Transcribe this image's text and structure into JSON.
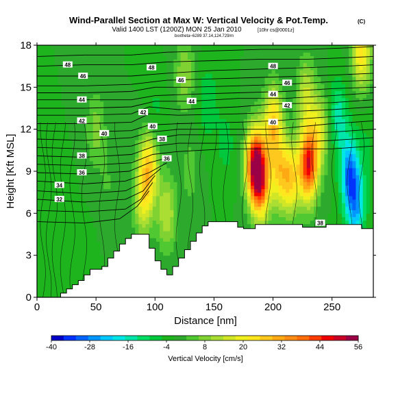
{
  "header": {
    "title": "Wind-Parallel Section at Max W: Vertical Velocity & Pot.Temp.",
    "copyright": "(C)",
    "valid_line": "Valid 1400 LST (1200Z) MON 25 Jan 2010",
    "valid_suffix": "[10hr cs@0001z]",
    "subline": "bxxtheta~6289 37.14,124.729/m"
  },
  "chart_data": {
    "type": "heatmap",
    "title": "Wind-Parallel Section at Max W: Vertical Velocity & Pot.Temp.",
    "xlabel": "Distance [nm]",
    "ylabel": "Height [Kft MSL]",
    "xlim": [
      0,
      285
    ],
    "ylim": [
      0,
      18
    ],
    "x_ticks": [
      0,
      50,
      100,
      150,
      200,
      250
    ],
    "y_ticks": [
      0,
      3,
      6,
      9,
      12,
      15,
      18
    ],
    "x_tick_labels": [
      "0",
      "50",
      "100",
      "150",
      "200",
      "250"
    ],
    "y_tick_labels": [
      "0",
      "3",
      "6",
      "9",
      "12",
      "15",
      "18"
    ],
    "colorbar": {
      "label": "Vertical Velocity [cm/s]",
      "min": -40,
      "max": 56,
      "step": 4,
      "ticks": [
        -40,
        -28,
        -16,
        -4,
        8,
        20,
        32,
        44,
        56
      ],
      "tick_labels": [
        "-40",
        "-28",
        "-16",
        "-4",
        "8",
        "20",
        "32",
        "44",
        "56"
      ],
      "colors": [
        "#0000c8",
        "#0032ff",
        "#0064ff",
        "#0096ff",
        "#00c8ff",
        "#00e6e6",
        "#00e6aa",
        "#00dc64",
        "#00c83c",
        "#1eb41e",
        "#2daa2d",
        "#50c832",
        "#7fd232",
        "#aade32",
        "#d2e628",
        "#f0f01e",
        "#ffe61e",
        "#ffc81e",
        "#ffaa14",
        "#ff8c14",
        "#ff6e0a",
        "#ff3c00",
        "#f00000",
        "#c80028",
        "#9b0046"
      ]
    },
    "background_w": 0,
    "terrain": {
      "x": [
        0,
        5,
        10,
        15,
        20,
        25,
        30,
        35,
        40,
        45,
        50,
        55,
        60,
        65,
        70,
        75,
        80,
        85,
        90,
        95,
        100,
        105,
        110,
        115,
        120,
        125,
        130,
        135,
        140,
        145,
        150,
        155,
        160,
        165,
        170,
        175,
        180,
        185,
        190,
        195,
        200,
        205,
        210,
        215,
        220,
        225,
        230,
        235,
        240,
        245,
        250,
        255,
        260,
        265,
        270,
        275,
        280,
        285
      ],
      "height": [
        0,
        0,
        0,
        0,
        0.3,
        0.6,
        0.9,
        1.2,
        1.6,
        2.0,
        2.0,
        2.2,
        2.8,
        3.3,
        3.8,
        4.2,
        4.5,
        4.5,
        4.5,
        3.5,
        2.6,
        2.0,
        1.6,
        2.2,
        2.8,
        3.4,
        4.0,
        4.6,
        5.1,
        5.4,
        5.4,
        5.4,
        5.4,
        5.4,
        5.0,
        4.9,
        4.9,
        5.2,
        5.2,
        5.2,
        5.2,
        5.2,
        5.2,
        5.2,
        5.2,
        5.0,
        5.0,
        5.0,
        5.0,
        5.2,
        5.2,
        5.2,
        5.2,
        5.2,
        5.2,
        4.9,
        4.9,
        4.9
      ]
    },
    "w_cells": [
      {
        "x": 50,
        "z": 12,
        "w": 10
      },
      {
        "x": 20,
        "z": 5,
        "w": -4
      },
      {
        "x": 60,
        "z": 8,
        "w": 4
      },
      {
        "x": 90,
        "z": 7,
        "w": 20
      },
      {
        "x": 95,
        "z": 9.5,
        "w": 26
      },
      {
        "x": 100,
        "z": 13,
        "w": -6
      },
      {
        "x": 110,
        "z": 6,
        "w": 16
      },
      {
        "x": 125,
        "z": 16,
        "w": 12
      },
      {
        "x": 130,
        "z": 9,
        "w": 6
      },
      {
        "x": 145,
        "z": 14,
        "w": -8
      },
      {
        "x": 160,
        "z": 11,
        "w": -6
      },
      {
        "x": 185,
        "z": 9.5,
        "w": 52
      },
      {
        "x": 190,
        "z": 8,
        "w": 32
      },
      {
        "x": 200,
        "z": 12.5,
        "w": 28
      },
      {
        "x": 205,
        "z": 9,
        "w": 22
      },
      {
        "x": 215,
        "z": 8.5,
        "w": 26
      },
      {
        "x": 230,
        "z": 9.5,
        "w": 50
      },
      {
        "x": 228,
        "z": 14.5,
        "w": 16
      },
      {
        "x": 240,
        "z": 12,
        "w": 18
      },
      {
        "x": 255,
        "z": 13,
        "w": -14
      },
      {
        "x": 265,
        "z": 9,
        "w": -26
      },
      {
        "x": 270,
        "z": 6.5,
        "w": -22
      },
      {
        "x": 275,
        "z": 17.5,
        "w": 26
      },
      {
        "x": 280,
        "z": 11,
        "w": -4
      },
      {
        "x": 40,
        "z": 2,
        "w": -2
      }
    ],
    "theta_contours": [
      {
        "level": 30,
        "points": [
          [
            0,
            5.4
          ],
          [
            40,
            5.3
          ],
          [
            70,
            5.6
          ],
          [
            85,
            6.5
          ],
          [
            95,
            7.6
          ]
        ]
      },
      {
        "level": 31,
        "points": [
          [
            0,
            6.2
          ],
          [
            40,
            6.1
          ],
          [
            75,
            6.3
          ],
          [
            88,
            7.0
          ],
          [
            98,
            8.2
          ]
        ]
      },
      {
        "level": 32,
        "points": [
          [
            0,
            7.0
          ],
          [
            40,
            6.8
          ],
          [
            75,
            7.0
          ],
          [
            90,
            7.6
          ],
          [
            100,
            8.7
          ]
        ]
      },
      {
        "level": 33,
        "points": [
          [
            0,
            7.6
          ],
          [
            40,
            7.4
          ],
          [
            75,
            7.6
          ],
          [
            92,
            8.3
          ],
          [
            105,
            9.2
          ]
        ]
      },
      {
        "level": 34,
        "points": [
          [
            0,
            8.3
          ],
          [
            40,
            8.1
          ],
          [
            75,
            8.3
          ],
          [
            95,
            8.9
          ],
          [
            110,
            9.6
          ]
        ]
      },
      {
        "level": 35,
        "points": [
          [
            0,
            8.9
          ],
          [
            40,
            8.8
          ],
          [
            78,
            9.0
          ],
          [
            95,
            9.6
          ],
          [
            112,
            10.0
          ]
        ]
      },
      {
        "level": 36,
        "points": [
          [
            0,
            9.5
          ],
          [
            40,
            9.4
          ],
          [
            80,
            9.6
          ],
          [
            98,
            10.2
          ],
          [
            118,
            10.4
          ],
          [
            160,
            10.6
          ],
          [
            200,
            10.6
          ],
          [
            250,
            10.6
          ],
          [
            285,
            10.8
          ]
        ]
      },
      {
        "level": 37,
        "points": [
          [
            0,
            10.1
          ],
          [
            40,
            10.0
          ],
          [
            80,
            10.2
          ],
          [
            100,
            10.8
          ],
          [
            120,
            11.0
          ],
          [
            160,
            11.0
          ],
          [
            200,
            11.0
          ],
          [
            250,
            11.2
          ],
          [
            285,
            11.4
          ]
        ]
      },
      {
        "level": 38,
        "points": [
          [
            0,
            10.7
          ],
          [
            40,
            10.6
          ],
          [
            80,
            10.8
          ],
          [
            98,
            11.3
          ],
          [
            120,
            11.6
          ],
          [
            160,
            11.6
          ],
          [
            200,
            11.6
          ],
          [
            250,
            11.8
          ],
          [
            285,
            12.0
          ]
        ]
      },
      {
        "level": 39,
        "points": [
          [
            0,
            11.3
          ],
          [
            40,
            11.2
          ],
          [
            80,
            11.4
          ],
          [
            96,
            11.8
          ],
          [
            120,
            12.0
          ],
          [
            160,
            12.0
          ],
          [
            200,
            12.0
          ],
          [
            250,
            12.4
          ],
          [
            285,
            12.6
          ]
        ]
      },
      {
        "level": 40,
        "points": [
          [
            0,
            11.9
          ],
          [
            40,
            11.8
          ],
          [
            80,
            11.9
          ],
          [
            95,
            12.3
          ],
          [
            120,
            12.4
          ],
          [
            170,
            12.5
          ],
          [
            200,
            12.6
          ],
          [
            250,
            12.9
          ],
          [
            285,
            13.1
          ]
        ]
      },
      {
        "level": 41,
        "points": [
          [
            0,
            12.4
          ],
          [
            40,
            12.4
          ],
          [
            80,
            12.5
          ],
          [
            95,
            13.1
          ],
          [
            120,
            13.0
          ],
          [
            170,
            13.1
          ],
          [
            200,
            13.2
          ],
          [
            250,
            13.4
          ],
          [
            285,
            13.6
          ]
        ]
      },
      {
        "level": 42,
        "points": [
          [
            0,
            13.0
          ],
          [
            40,
            13.0
          ],
          [
            80,
            13.1
          ],
          [
            95,
            13.6
          ],
          [
            120,
            13.4
          ],
          [
            170,
            13.6
          ],
          [
            200,
            13.8
          ],
          [
            250,
            13.9
          ],
          [
            285,
            14.1
          ]
        ]
      },
      {
        "level": 43,
        "points": [
          [
            0,
            13.5
          ],
          [
            40,
            13.5
          ],
          [
            80,
            13.6
          ],
          [
            100,
            14.0
          ],
          [
            130,
            14.0
          ],
          [
            170,
            14.2
          ],
          [
            210,
            14.2
          ],
          [
            250,
            14.4
          ],
          [
            285,
            14.6
          ]
        ]
      },
      {
        "level": 44,
        "points": [
          [
            0,
            14.1
          ],
          [
            40,
            14.1
          ],
          [
            80,
            14.1
          ],
          [
            100,
            14.4
          ],
          [
            130,
            14.5
          ],
          [
            170,
            14.6
          ],
          [
            210,
            14.7
          ],
          [
            250,
            14.9
          ],
          [
            285,
            15.0
          ]
        ]
      },
      {
        "level": 45,
        "points": [
          [
            0,
            14.6
          ],
          [
            40,
            14.6
          ],
          [
            80,
            14.7
          ],
          [
            100,
            15.0
          ],
          [
            130,
            15.0
          ],
          [
            170,
            15.1
          ],
          [
            210,
            15.2
          ],
          [
            250,
            15.4
          ],
          [
            285,
            15.5
          ]
        ]
      },
      {
        "level": 46,
        "points": [
          [
            0,
            15.1
          ],
          [
            40,
            15.1
          ],
          [
            80,
            15.2
          ],
          [
            110,
            15.5
          ],
          [
            150,
            15.6
          ],
          [
            190,
            15.7
          ],
          [
            230,
            15.8
          ],
          [
            260,
            15.9
          ],
          [
            285,
            16.0
          ]
        ]
      },
      {
        "level": 47,
        "points": [
          [
            0,
            15.8
          ],
          [
            40,
            15.8
          ],
          [
            80,
            15.8
          ],
          [
            110,
            16.0
          ],
          [
            150,
            16.2
          ],
          [
            190,
            16.3
          ],
          [
            230,
            16.4
          ],
          [
            260,
            16.5
          ],
          [
            285,
            16.6
          ]
        ]
      },
      {
        "level": 48,
        "points": [
          [
            0,
            16.5
          ],
          [
            40,
            16.6
          ],
          [
            80,
            16.6
          ],
          [
            110,
            16.8
          ],
          [
            150,
            16.9
          ],
          [
            190,
            17.0
          ],
          [
            230,
            17.0
          ],
          [
            260,
            17.1
          ],
          [
            285,
            17.2
          ]
        ]
      },
      {
        "level": 49,
        "points": [
          [
            0,
            17.2
          ],
          [
            40,
            17.3
          ],
          [
            80,
            17.3
          ],
          [
            110,
            17.5
          ],
          [
            150,
            17.6
          ],
          [
            190,
            17.7
          ],
          [
            230,
            17.7
          ],
          [
            260,
            17.8
          ],
          [
            285,
            17.9
          ]
        ]
      }
    ],
    "contour_labels": [
      {
        "text": "48",
        "x": 26,
        "z": 16.6
      },
      {
        "text": "46",
        "x": 39,
        "z": 15.8
      },
      {
        "text": "44",
        "x": 38,
        "z": 14.1
      },
      {
        "text": "42",
        "x": 38,
        "z": 12.6
      },
      {
        "text": "40",
        "x": 57,
        "z": 11.7
      },
      {
        "text": "38",
        "x": 38,
        "z": 10.1
      },
      {
        "text": "36",
        "x": 38,
        "z": 8.9
      },
      {
        "text": "34",
        "x": 19,
        "z": 8.0
      },
      {
        "text": "32",
        "x": 19,
        "z": 7.0
      },
      {
        "text": "48",
        "x": 97,
        "z": 16.4
      },
      {
        "text": "46",
        "x": 122,
        "z": 15.5
      },
      {
        "text": "44",
        "x": 131,
        "z": 14.0
      },
      {
        "text": "42",
        "x": 90,
        "z": 13.2
      },
      {
        "text": "40",
        "x": 98,
        "z": 12.2
      },
      {
        "text": "38",
        "x": 106,
        "z": 11.3
      },
      {
        "text": "36",
        "x": 110,
        "z": 9.9
      },
      {
        "text": "48",
        "x": 200,
        "z": 16.5
      },
      {
        "text": "46",
        "x": 212,
        "z": 15.3
      },
      {
        "text": "44",
        "x": 200,
        "z": 14.5
      },
      {
        "text": "42",
        "x": 212,
        "z": 13.7
      },
      {
        "text": "40",
        "x": 200,
        "z": 12.5
      },
      {
        "text": "38",
        "x": 240,
        "z": 5.3
      }
    ],
    "vertical_lines_x": [
      5,
      10,
      15,
      22,
      30,
      40,
      55,
      68,
      120,
      130,
      140,
      150,
      160,
      176,
      196,
      218,
      235,
      252,
      265,
      275
    ]
  }
}
